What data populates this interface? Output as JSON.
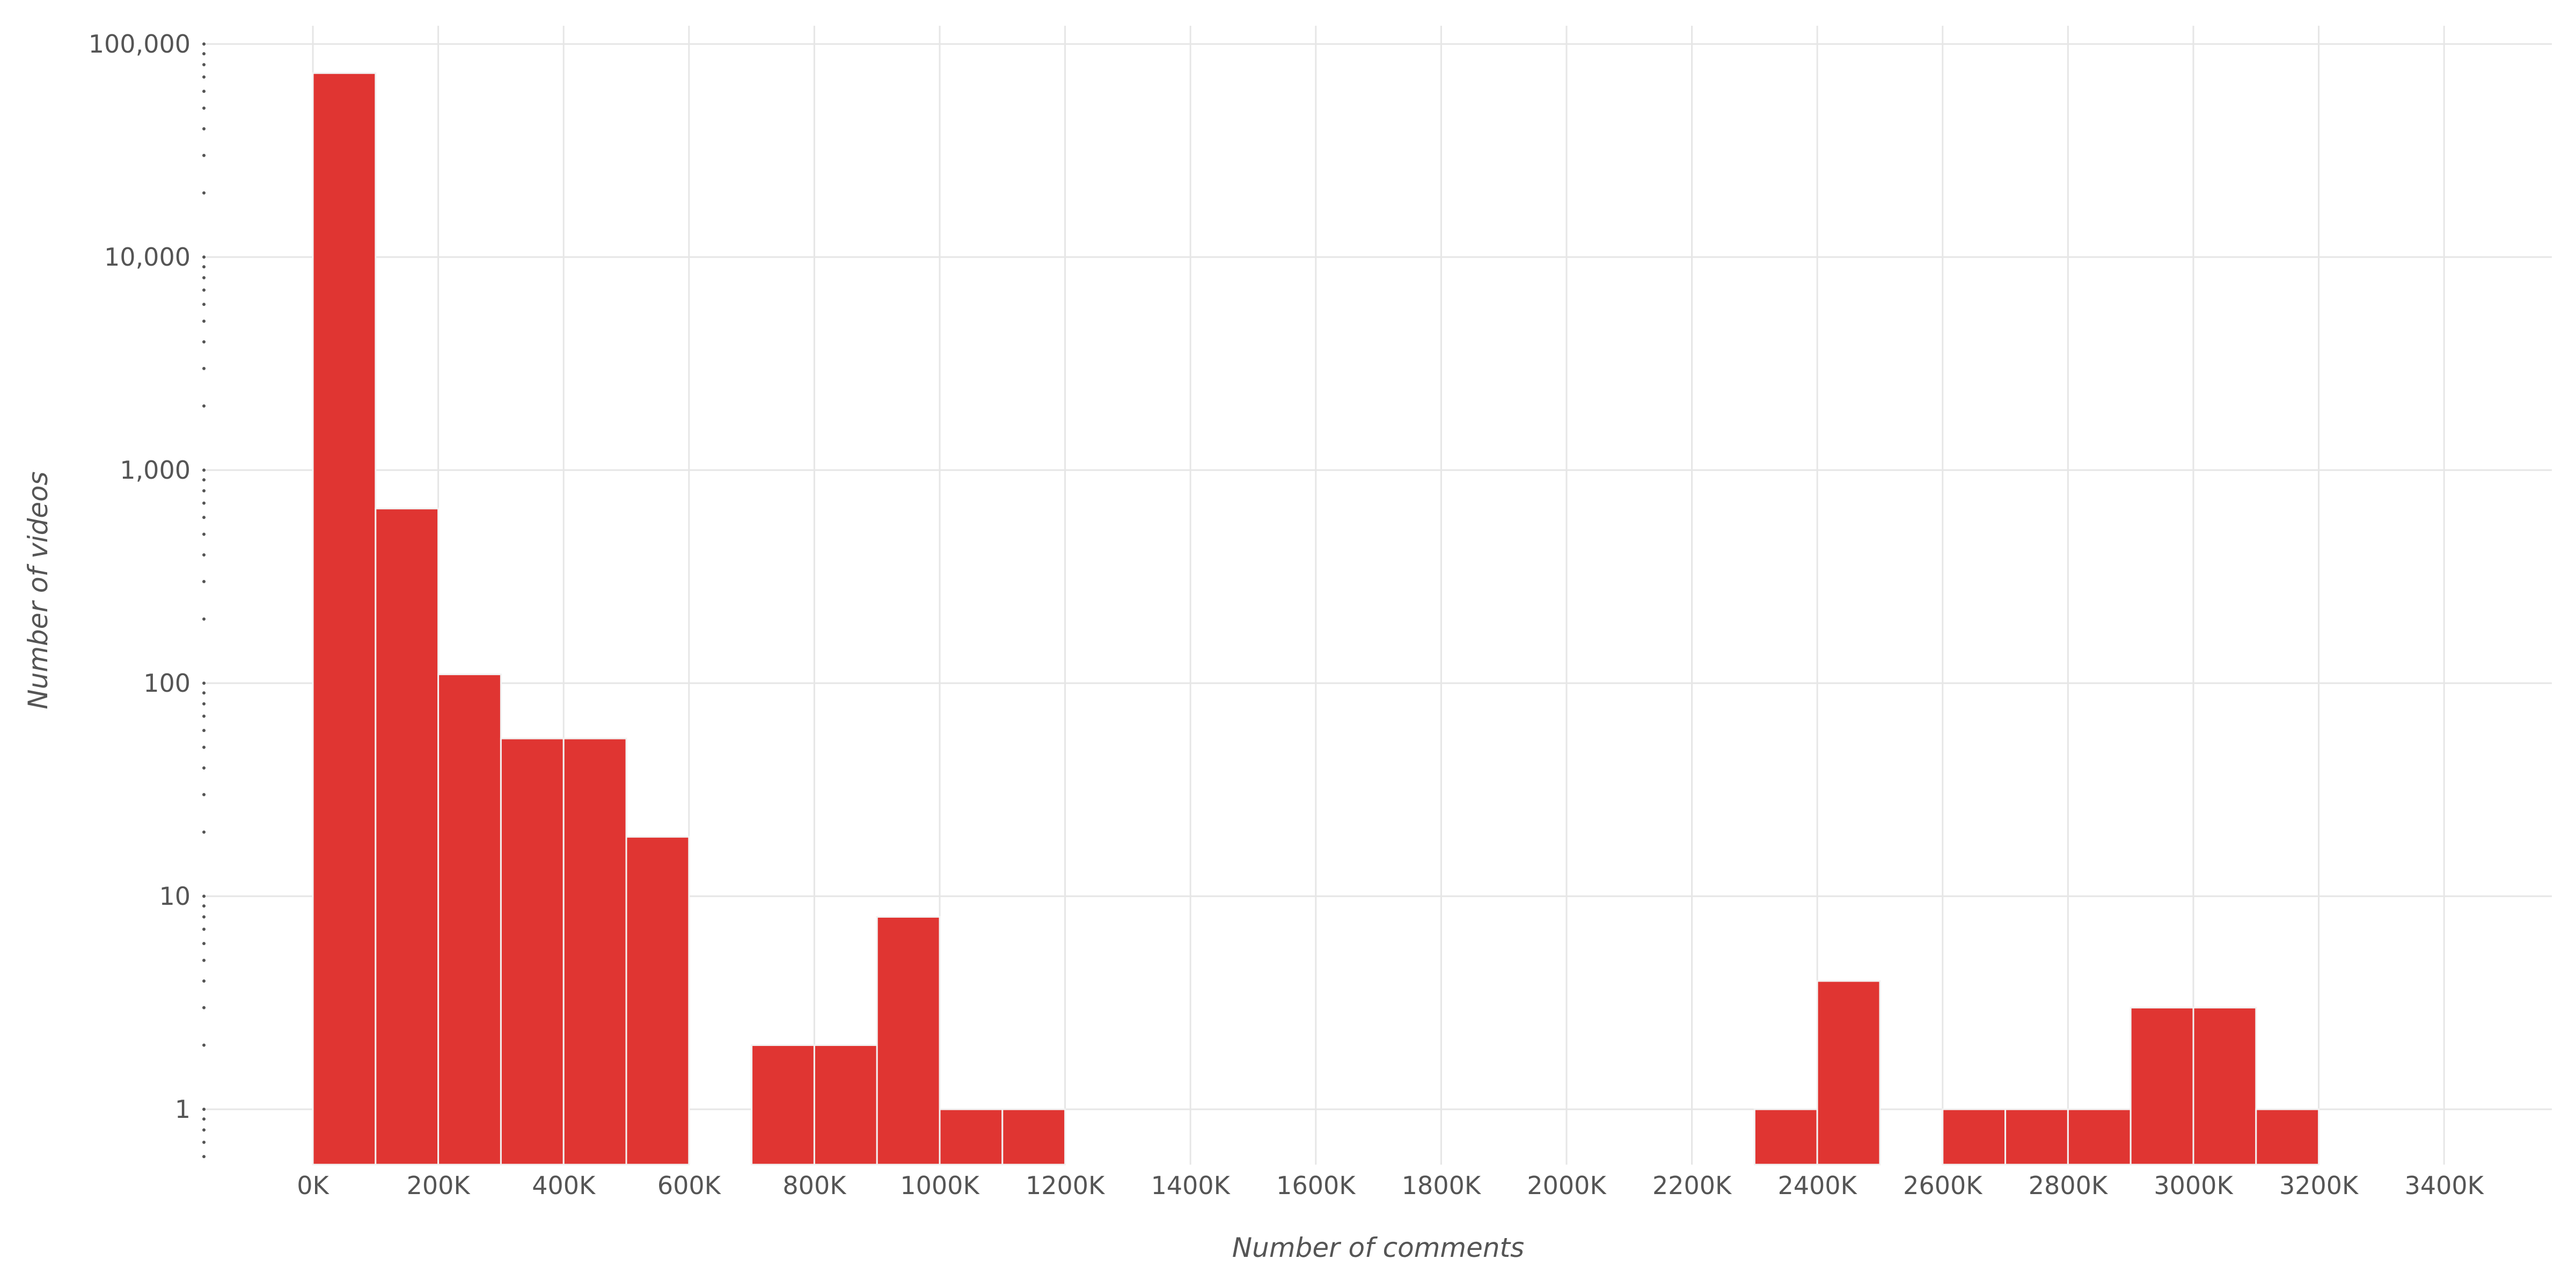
{
  "chart_data": {
    "type": "bar",
    "title": "",
    "xlabel": "Number of comments",
    "ylabel": "Number of videos",
    "y_scale": "log",
    "ylim": [
      0.55,
      130000
    ],
    "xlim": [
      -150000,
      3550000
    ],
    "grid": true,
    "bar_color": "#e03532",
    "bin_width": 100000,
    "x_ticks": [
      0,
      200000,
      400000,
      600000,
      800000,
      1000000,
      1200000,
      1400000,
      1600000,
      1800000,
      2000000,
      2200000,
      2400000,
      2600000,
      2800000,
      3000000,
      3200000,
      3400000
    ],
    "x_tick_labels": [
      "0K",
      "200K",
      "400K",
      "600K",
      "800K",
      "1000K",
      "1200K",
      "1400K",
      "1600K",
      "1800K",
      "2000K",
      "2200K",
      "2400K",
      "2600K",
      "2800K",
      "3000K",
      "3200K",
      "3400K"
    ],
    "y_ticks": [
      1,
      10,
      100,
      1000,
      10000,
      100000
    ],
    "y_tick_labels": [
      "1",
      "10",
      "100",
      "1,000",
      "10,000",
      "100,000"
    ],
    "bins": [
      {
        "x": 0,
        "value": 73000
      },
      {
        "x": 100000,
        "value": 660
      },
      {
        "x": 200000,
        "value": 110
      },
      {
        "x": 300000,
        "value": 55
      },
      {
        "x": 400000,
        "value": 55
      },
      {
        "x": 500000,
        "value": 19
      },
      {
        "x": 700000,
        "value": 2
      },
      {
        "x": 800000,
        "value": 2
      },
      {
        "x": 900000,
        "value": 8
      },
      {
        "x": 1000000,
        "value": 1
      },
      {
        "x": 1100000,
        "value": 1
      },
      {
        "x": 2300000,
        "value": 1
      },
      {
        "x": 2400000,
        "value": 4
      },
      {
        "x": 2600000,
        "value": 1
      },
      {
        "x": 2700000,
        "value": 1
      },
      {
        "x": 2800000,
        "value": 1
      },
      {
        "x": 2900000,
        "value": 3
      },
      {
        "x": 3000000,
        "value": 3
      },
      {
        "x": 3100000,
        "value": 1
      }
    ]
  }
}
